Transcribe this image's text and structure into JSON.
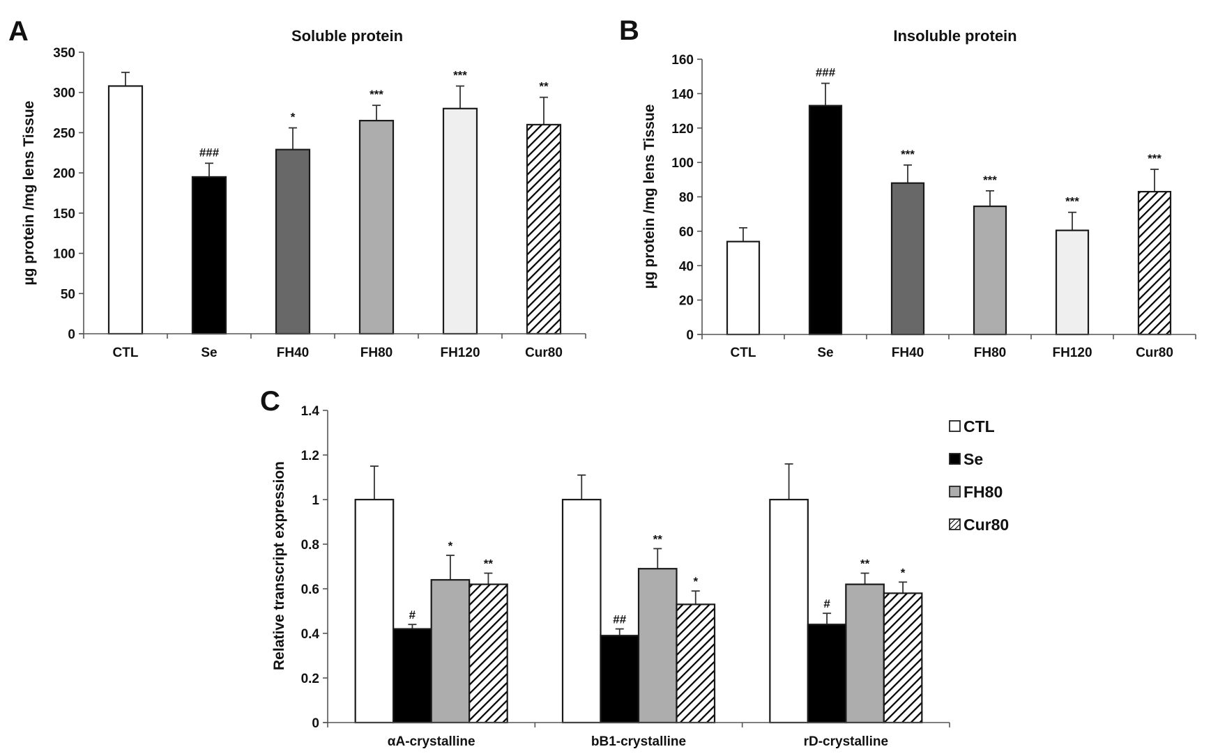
{
  "figure": {
    "panels": [
      "A",
      "B",
      "C"
    ]
  },
  "styles": {
    "CTL": {
      "fill": "#ffffff",
      "pattern": "none"
    },
    "Se": {
      "fill": "#000000",
      "pattern": "none"
    },
    "FH40": {
      "fill": "#686868",
      "pattern": "none"
    },
    "FH80": {
      "fill": "#adadad",
      "pattern": "none"
    },
    "FH120": {
      "fill": "#efefef",
      "pattern": "none"
    },
    "Cur80": {
      "fill": "#ffffff",
      "pattern": "diagonal-hatch"
    }
  },
  "chart_data": [
    {
      "panel": "A",
      "type": "bar",
      "title": "Soluble protein",
      "xlabel": "",
      "ylabel": "µg protein /mg lens Tissue",
      "ylim": [
        0,
        350
      ],
      "yticks": [
        0,
        50,
        100,
        150,
        200,
        250,
        300,
        350
      ],
      "grid": false,
      "categories": [
        "CTL",
        "Se",
        "FH40",
        "FH80",
        "FH120",
        "Cur80"
      ],
      "values": [
        308,
        195,
        229,
        265,
        280,
        260
      ],
      "error_upper": [
        325,
        212,
        256,
        284,
        308,
        294
      ],
      "annotations": [
        "",
        "###",
        "*",
        "***",
        "***",
        "**"
      ]
    },
    {
      "panel": "B",
      "type": "bar",
      "title": "Insoluble protein",
      "xlabel": "",
      "ylabel": "µg protein /mg lens Tissue",
      "ylim": [
        0,
        160
      ],
      "yticks": [
        0,
        20,
        40,
        60,
        80,
        100,
        120,
        140,
        160
      ],
      "grid": false,
      "categories": [
        "CTL",
        "Se",
        "FH40",
        "FH80",
        "FH120",
        "Cur80"
      ],
      "values": [
        54,
        133,
        88,
        74.5,
        60.5,
        83
      ],
      "error_upper": [
        62,
        146,
        98.5,
        83.5,
        71,
        96
      ],
      "annotations": [
        "",
        "###",
        "***",
        "***",
        "***",
        "***"
      ]
    },
    {
      "panel": "C",
      "type": "bar",
      "title": "",
      "xlabel": "",
      "ylabel": "Relative transcript expression",
      "ylim": [
        0,
        1.4
      ],
      "yticks": [
        0,
        0.2,
        0.4,
        0.6,
        0.8,
        1,
        1.2,
        1.4
      ],
      "ytick_labels": [
        "0",
        "0.2",
        "0.4",
        "0.6",
        "0.8",
        "1",
        "1.2",
        "1.4"
      ],
      "grid": false,
      "legend_position": "right",
      "categories": [
        "αA-crystalline",
        "bB1-crystalline",
        "rD-crystalline"
      ],
      "series": [
        {
          "name": "CTL",
          "values": [
            1.0,
            1.0,
            1.0
          ],
          "error_upper": [
            1.15,
            1.11,
            1.16
          ],
          "annotations": [
            "",
            "",
            ""
          ]
        },
        {
          "name": "Se",
          "values": [
            0.42,
            0.39,
            0.44
          ],
          "error_upper": [
            0.44,
            0.42,
            0.49
          ],
          "annotations": [
            "#",
            "##",
            "#"
          ]
        },
        {
          "name": "FH80",
          "values": [
            0.64,
            0.69,
            0.62
          ],
          "error_upper": [
            0.75,
            0.78,
            0.67
          ],
          "annotations": [
            "*",
            "**",
            "**"
          ]
        },
        {
          "name": "Cur80",
          "values": [
            0.62,
            0.53,
            0.58
          ],
          "error_upper": [
            0.67,
            0.59,
            0.63
          ],
          "annotations": [
            "**",
            "*",
            "*"
          ]
        }
      ]
    }
  ]
}
